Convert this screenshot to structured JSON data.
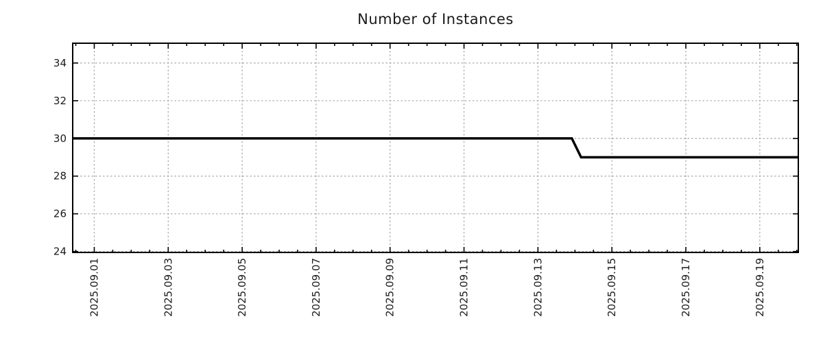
{
  "title": "Number of Instances",
  "colors": {
    "background": "#ffffff",
    "axis": "#000000",
    "grid": "#a8a8a8",
    "text": "#1a1a1a",
    "line": "#000000"
  },
  "chart_data": {
    "type": "line",
    "title": "Number of Instances",
    "xlabel": "",
    "ylabel": "",
    "legend": false,
    "grid": "dotted",
    "x_range": [
      "2025-08-31T10:00:00",
      "2025-09-20T01:00:00"
    ],
    "ylim": [
      23.95,
      35.05
    ],
    "y_ticks": [
      24,
      26,
      28,
      30,
      32,
      34
    ],
    "x_minor_tick_hours": 12,
    "x_ticks": [
      {
        "date": "2025-09-01T00:00:00",
        "label": "2025.09.01"
      },
      {
        "date": "2025-09-03T00:00:00",
        "label": "2025.09.03"
      },
      {
        "date": "2025-09-05T00:00:00",
        "label": "2025.09.05"
      },
      {
        "date": "2025-09-07T00:00:00",
        "label": "2025.09.07"
      },
      {
        "date": "2025-09-09T00:00:00",
        "label": "2025.09.09"
      },
      {
        "date": "2025-09-11T00:00:00",
        "label": "2025.09.11"
      },
      {
        "date": "2025-09-13T00:00:00",
        "label": "2025.09.13"
      },
      {
        "date": "2025-09-15T00:00:00",
        "label": "2025.09.15"
      },
      {
        "date": "2025-09-17T00:00:00",
        "label": "2025.09.17"
      },
      {
        "date": "2025-09-19T00:00:00",
        "label": "2025.09.19"
      }
    ],
    "series": [
      {
        "name": "Number of Instances",
        "color": "#000000",
        "points": [
          {
            "t": "2025-08-31T10:00:00",
            "v": 30
          },
          {
            "t": "2025-09-13T22:00:00",
            "v": 30
          },
          {
            "t": "2025-09-14T04:00:00",
            "v": 29
          },
          {
            "t": "2025-09-20T01:00:00",
            "v": 29
          }
        ]
      }
    ]
  }
}
